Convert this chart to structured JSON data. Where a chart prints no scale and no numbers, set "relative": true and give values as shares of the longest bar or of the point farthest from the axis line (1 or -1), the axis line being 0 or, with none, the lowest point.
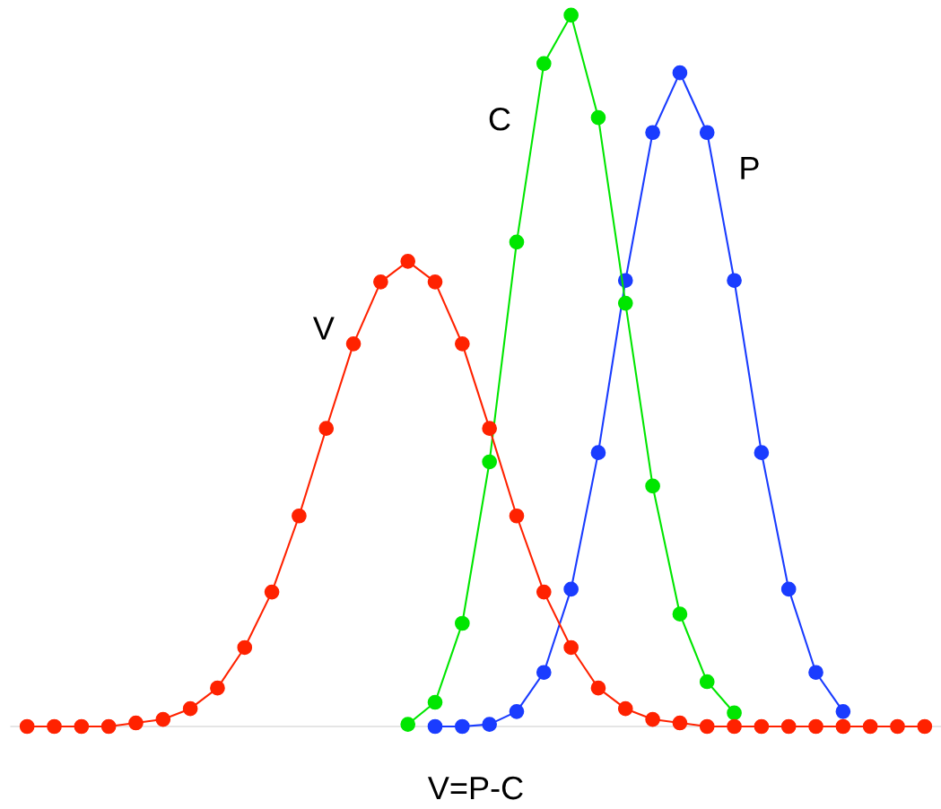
{
  "chart_data": {
    "type": "line",
    "relative": true,
    "xlabel": "V=P-C",
    "marker": "circle",
    "line_style": "solid",
    "grid": false,
    "legend": false,
    "categories": [
      null,
      null,
      null,
      null,
      null,
      null,
      null,
      null,
      null,
      null,
      null,
      null,
      null,
      null,
      null,
      null,
      null,
      null,
      null,
      null,
      null,
      null,
      null,
      null,
      null,
      null,
      null,
      null,
      null,
      null,
      null,
      null,
      null,
      null
    ],
    "series": [
      {
        "name": "V",
        "color": "#ff2200",
        "values": [
          0,
          0,
          0,
          0,
          0.005,
          0.01,
          0.025,
          0.054,
          0.111,
          0.189,
          0.296,
          0.419,
          0.538,
          0.625,
          0.654,
          0.625,
          0.538,
          0.419,
          0.296,
          0.189,
          0.111,
          0.054,
          0.025,
          0.01,
          0.005,
          0,
          0,
          0,
          0,
          0,
          0,
          0,
          0,
          0
        ]
      },
      {
        "name": "C",
        "color": "#00e600",
        "values": [
          null,
          null,
          null,
          null,
          null,
          null,
          null,
          null,
          null,
          null,
          null,
          null,
          null,
          null,
          0.003,
          0.034,
          0.145,
          0.372,
          0.681,
          0.932,
          1,
          0.856,
          0.595,
          0.338,
          0.158,
          0.063,
          0.019,
          null,
          null,
          null,
          null,
          null,
          null,
          null
        ]
      },
      {
        "name": "P",
        "color": "#1a3cff",
        "values": [
          null,
          null,
          null,
          null,
          null,
          null,
          null,
          null,
          null,
          null,
          null,
          null,
          null,
          null,
          null,
          0,
          0,
          0.003,
          0.021,
          0.076,
          0.193,
          0.385,
          0.627,
          0.835,
          0.919,
          0.835,
          0.627,
          0.385,
          0.193,
          0.076,
          0.021,
          null,
          null,
          null
        ]
      }
    ]
  }
}
